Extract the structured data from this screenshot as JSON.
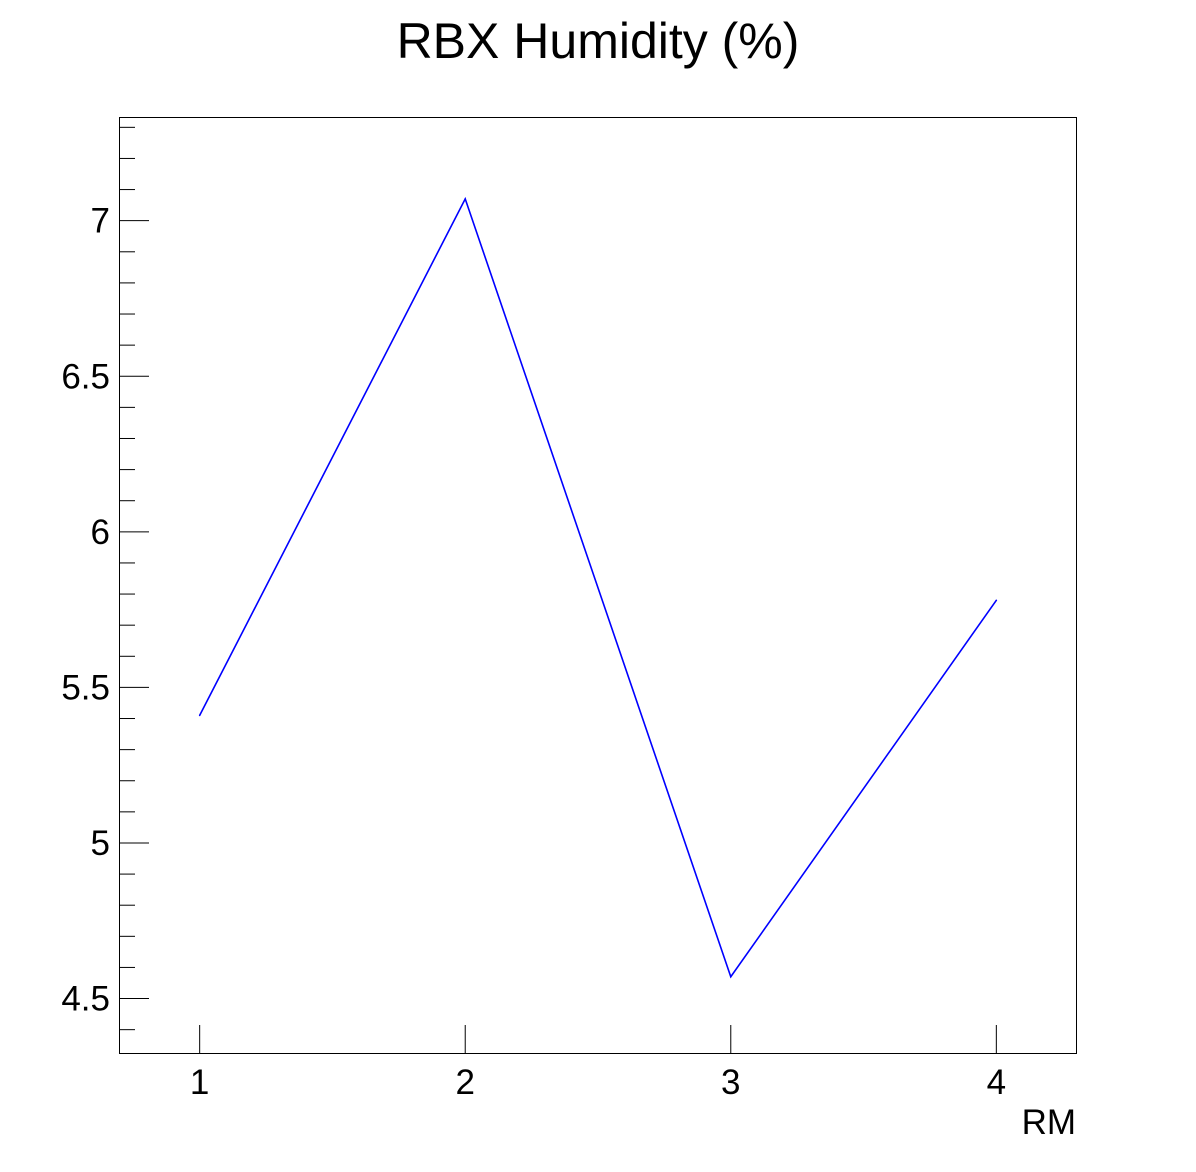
{
  "chart_data": {
    "type": "line",
    "title": "RBX Humidity (%)",
    "xlabel": "RM",
    "ylabel": "",
    "x": [
      1,
      2,
      3,
      4
    ],
    "series": [
      {
        "values": [
          5.41,
          7.07,
          4.57,
          5.78
        ],
        "color": "#0000ff"
      }
    ],
    "xlim": [
      0.7,
      4.3
    ],
    "ylim": [
      4.325,
      7.33
    ],
    "xticks": [
      1,
      2,
      3,
      4
    ],
    "xtick_labels": [
      "1",
      "2",
      "3",
      "4"
    ],
    "yticks": [
      4.5,
      5,
      5.5,
      6,
      6.5,
      7
    ],
    "ytick_labels": [
      "4.5",
      "5",
      "5.5",
      "6",
      "6.5",
      "7"
    ],
    "grid": false,
    "legend": "none"
  }
}
